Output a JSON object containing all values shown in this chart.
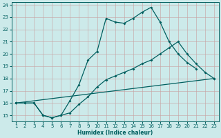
{
  "xlabel": "Humidex (Indice chaleur)",
  "bg_color": "#cceaea",
  "line_color": "#005f5f",
  "xlim": [
    0.5,
    23.5
  ],
  "ylim": [
    14.5,
    24.2
  ],
  "xticks": [
    1,
    2,
    3,
    4,
    5,
    6,
    7,
    8,
    9,
    10,
    11,
    12,
    13,
    14,
    15,
    16,
    17,
    18,
    19,
    20,
    21,
    22,
    23
  ],
  "yticks": [
    15,
    16,
    17,
    18,
    19,
    20,
    21,
    22,
    23,
    24
  ],
  "line1_x": [
    1,
    2,
    3,
    4,
    5,
    6,
    7,
    8,
    9,
    10,
    11,
    12,
    13,
    14,
    15,
    16,
    17,
    18,
    19,
    20,
    21
  ],
  "line1_y": [
    16,
    16,
    16,
    15,
    14.8,
    15,
    16.2,
    17.5,
    19.5,
    20.2,
    22.9,
    22.6,
    22.5,
    22.9,
    23.4,
    23.8,
    22.6,
    21.0,
    20.0,
    19.3,
    18.8
  ],
  "line2_x": [
    1,
    2,
    3,
    4,
    5,
    6,
    7,
    8,
    9,
    10,
    11,
    12,
    13,
    14,
    15,
    16,
    17,
    18,
    19,
    20,
    21,
    22,
    23
  ],
  "line2_y": [
    16,
    16,
    16,
    15,
    14.8,
    15.0,
    15.2,
    15.9,
    16.5,
    17.3,
    17.9,
    18.2,
    18.5,
    18.8,
    19.2,
    19.5,
    20.0,
    20.5,
    21.0,
    20.0,
    19.2,
    18.5,
    18.0
  ],
  "line3_x": [
    1,
    23
  ],
  "line3_y": [
    16,
    18
  ]
}
